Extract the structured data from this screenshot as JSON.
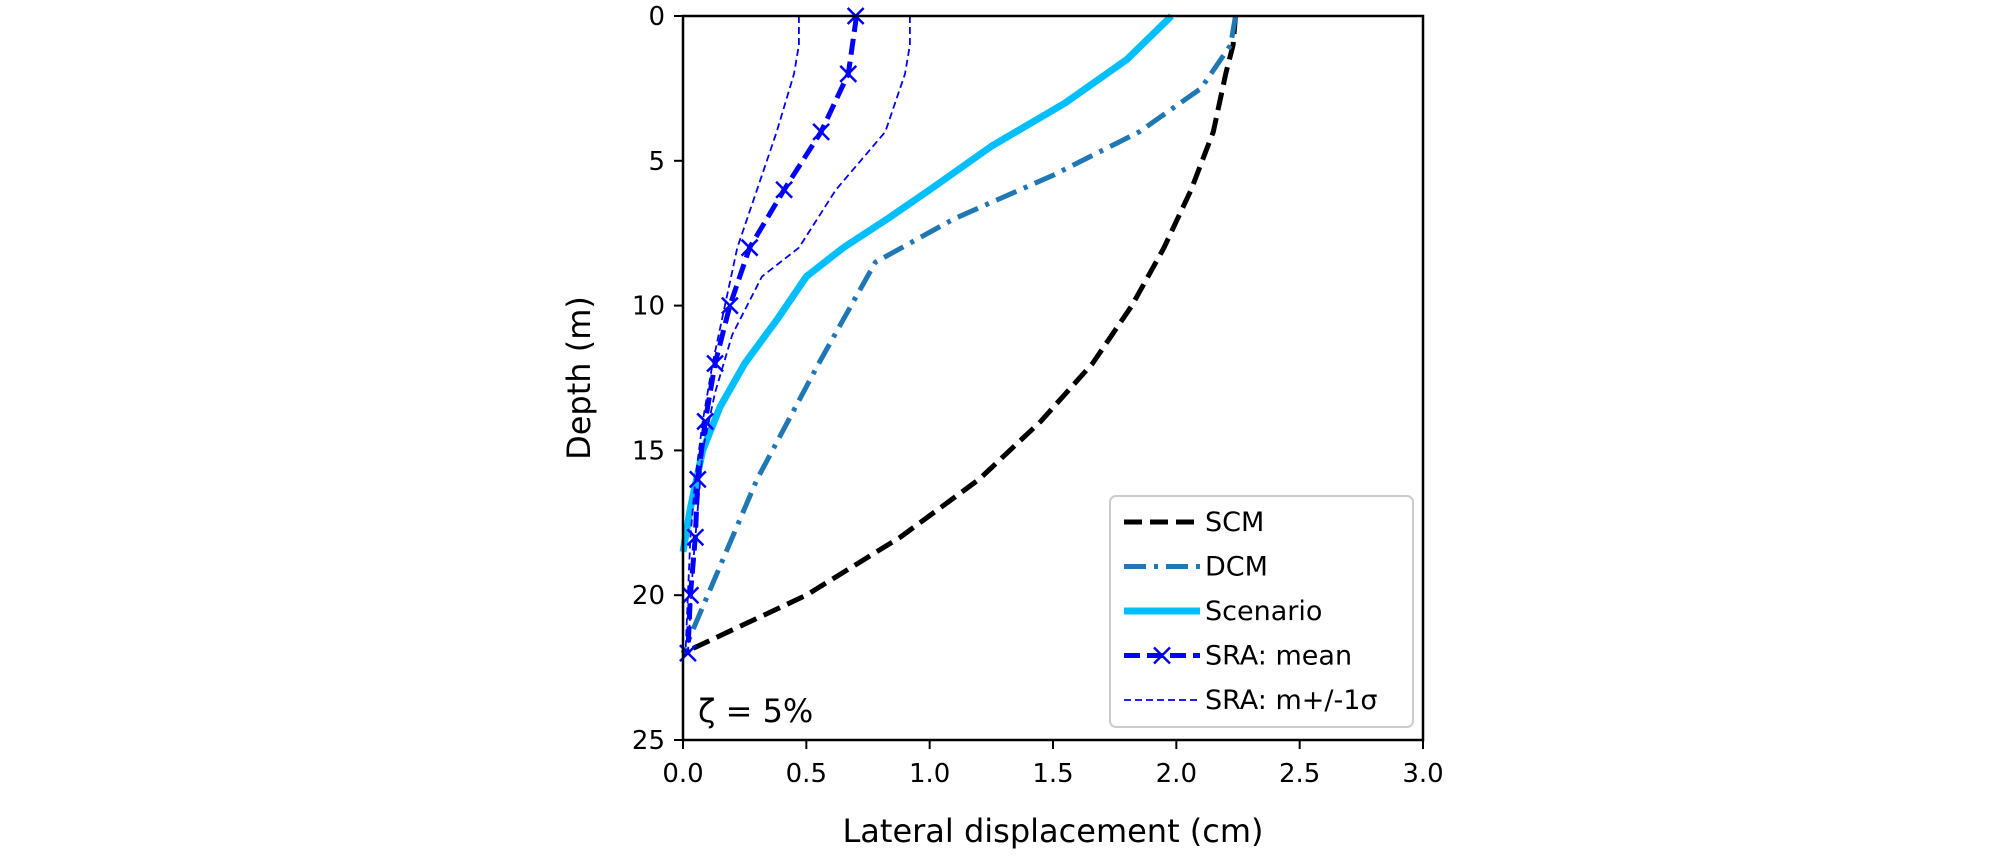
{
  "chart_data": {
    "type": "line",
    "title": "",
    "xlabel": "Lateral displacement (cm)",
    "ylabel": "Depth (m)",
    "xlim": [
      0,
      3
    ],
    "ylim": [
      0,
      25
    ],
    "y_inverted": true,
    "xticks": [
      "0.0",
      "0.5",
      "1.0",
      "1.5",
      "2.0",
      "2.5",
      "3.0"
    ],
    "yticks": [
      "0",
      "5",
      "10",
      "15",
      "20",
      "25"
    ],
    "annotation": "ζ = 5%",
    "legend_position": "lower-right",
    "grid": false,
    "series": [
      {
        "name": "SCM",
        "color": "#000000",
        "style": "dashed",
        "x": [
          2.24,
          2.23,
          2.2,
          2.15,
          2.06,
          1.95,
          1.82,
          1.66,
          1.45,
          1.2,
          0.88,
          0.5,
          0.0
        ],
        "y": [
          0,
          1,
          2,
          4,
          6,
          8,
          10,
          12,
          14,
          16,
          18,
          20,
          22
        ]
      },
      {
        "name": "DCM",
        "color": "#1f77b4",
        "style": "dashdot",
        "x": [
          2.24,
          2.22,
          2.1,
          1.85,
          1.5,
          1.1,
          0.78,
          0.55,
          0.3,
          0.1,
          0.0
        ],
        "y": [
          0,
          1,
          2.5,
          4,
          5.5,
          7,
          8.5,
          12,
          16,
          20,
          22
        ]
      },
      {
        "name": "Scenario",
        "color": "#00bfff",
        "style": "solid",
        "x": [
          1.98,
          1.8,
          1.55,
          1.25,
          1.0,
          0.83,
          0.65,
          0.5,
          0.38,
          0.25,
          0.15,
          0.08,
          0.03,
          0.0
        ],
        "y": [
          0,
          1.5,
          3,
          4.5,
          6,
          7,
          8,
          9,
          10.5,
          12,
          13.5,
          15,
          17,
          18.5
        ]
      },
      {
        "name": "SRA: mean",
        "color": "#0000ff",
        "style": "dashed-x",
        "x": [
          0.7,
          0.7,
          0.67,
          0.56,
          0.41,
          0.27,
          0.19,
          0.13,
          0.09,
          0.06,
          0.05,
          0.03,
          0.02
        ],
        "y": [
          0,
          0.2,
          2,
          4,
          6,
          8,
          10,
          12,
          14,
          16,
          18,
          20,
          22
        ]
      },
      {
        "name": "SRA: m+/-1σ",
        "color": "#0000ff",
        "style": "thin-dashed",
        "x": [
          0.47,
          0.47,
          0.45,
          0.38,
          0.3,
          0.22,
          0.17,
          0.12,
          0.08,
          0.05,
          0.03,
          0.02,
          0.01
        ],
        "y": [
          0,
          1,
          2,
          4,
          6,
          8,
          10,
          12,
          14,
          16,
          18,
          20,
          22
        ]
      },
      {
        "name": "",
        "color": "#0000ff",
        "style": "thin-dashed",
        "x": [
          0.92,
          0.92,
          0.9,
          0.82,
          0.62,
          0.47,
          0.32,
          0.2,
          0.13,
          0.08,
          0.06,
          0.04,
          0.02
        ],
        "y": [
          0,
          1,
          2,
          4,
          6,
          8,
          9,
          11,
          13,
          15,
          17,
          19,
          22
        ]
      }
    ]
  }
}
